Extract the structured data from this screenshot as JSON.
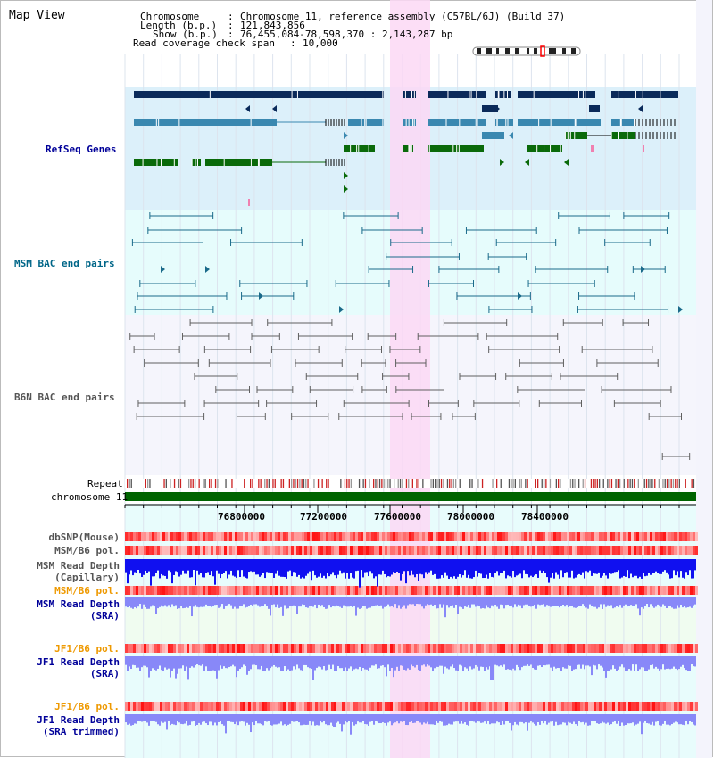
{
  "title": "Map View",
  "header": {
    "chromosome_label": "Chromosome",
    "chromosome_value": "Chromosome 11, reference assembly (C57BL/6J) (Build 37)",
    "length_label": "Length (b.p.)",
    "length_value": "121,843,856",
    "show_label": "Show (b.p.)",
    "show_value": "76,455,084-78,598,370 : 2,143,287 bp",
    "coverage_label": "Read coverage check span",
    "coverage_value": "10,000"
  },
  "tracks": {
    "refseq": "RefSeq Genes",
    "msm_bac": "MSM BAC end pairs",
    "b6n_bac": "B6N BAC end pairs",
    "repeat": "Repeat",
    "chromosome": "chromosome 11",
    "dbsnp": "dbSNP(Mouse)",
    "msm_b6_pol1": "MSM/B6 pol.",
    "msm_read_depth_cap_1": "MSM Read Depth",
    "msm_read_depth_cap_2": "(Capillary)",
    "msm_b6_pol2": "MSM/B6 pol.",
    "msm_read_depth_sra_1": "MSM Read Depth",
    "msm_read_depth_sra_2": "(SRA)",
    "jf1_b6_pol1": "JF1/B6 pol.",
    "jf1_read_depth_sra_1": "JF1 Read Depth",
    "jf1_read_depth_sra_2": "(SRA)",
    "jf1_b6_pol2": "JF1/B6 pol.",
    "jf1_read_depth_trim_1": "JF1 Read Depth",
    "jf1_read_depth_trim_2": "(SRA trimmed)"
  },
  "axis": {
    "ticks": [
      "76800000",
      "77200000",
      "77600000",
      "78000000",
      "78400000"
    ]
  },
  "colors": {
    "refseq_bg": "#dcf0fa",
    "msm_bac_bg": "#e6fcfc",
    "b6n_bac_bg": "#f5f5fc",
    "lower_bg": "#e8fcfc",
    "highlight": "#fcd8f4",
    "gene_dark": "#0a2a5a",
    "gene_mid": "#3a88b0",
    "gene_green": "#0a6a0a",
    "bac_msm": "#1a6a8a",
    "bac_b6n": "#606060",
    "chromosome": "#006400",
    "depth_dark": "#1010f0",
    "depth_light": "#8888f8",
    "label_blue": "#000099",
    "label_orange": "#ee9900",
    "label_teal": "#006688"
  }
}
